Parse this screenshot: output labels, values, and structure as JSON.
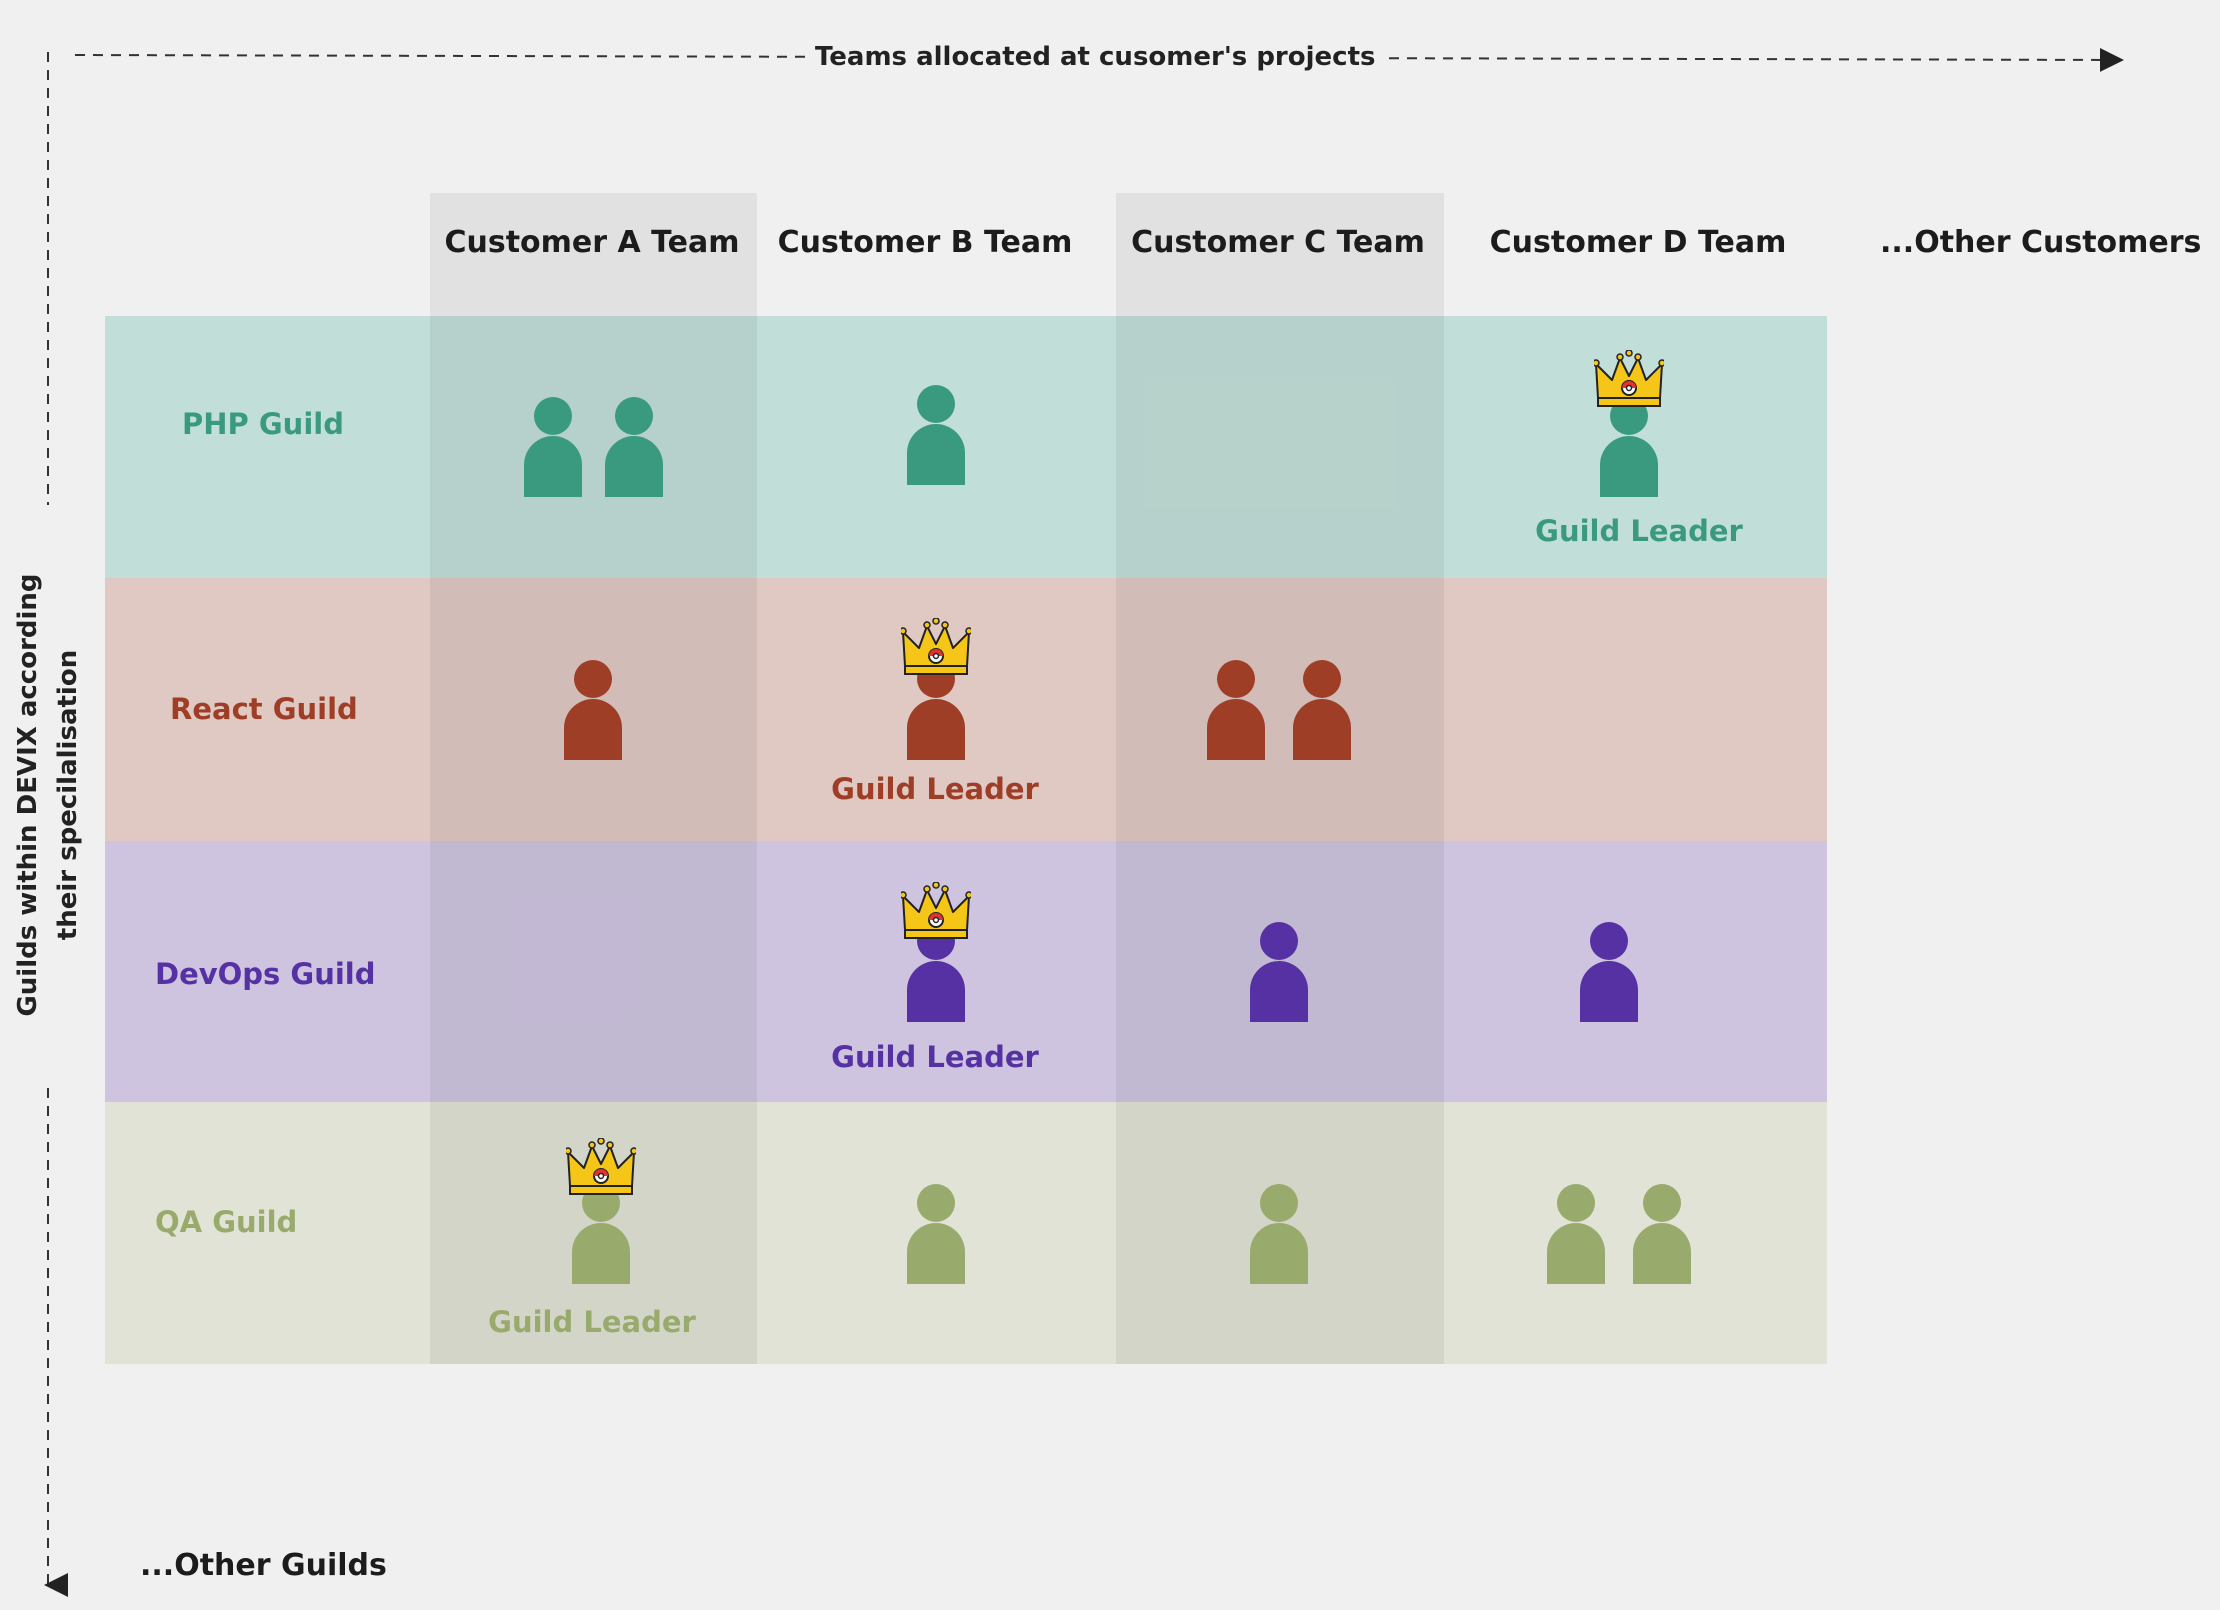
{
  "axes": {
    "horizontal_title": "Teams allocated at cusomer's projects",
    "vertical_title": "Guilds within DEVIX according their specilalisation"
  },
  "columns": [
    {
      "label": "Customer A Team"
    },
    {
      "label": "Customer B Team"
    },
    {
      "label": "Customer C Team"
    },
    {
      "label": "Customer D Team"
    }
  ],
  "other_customers": "...Other Customers",
  "other_guilds": "...Other Guilds",
  "leader_text": "Guild Leader",
  "guilds": [
    {
      "label": "PHP Guild",
      "color": "#3a9a80",
      "band_color": "#c2ded8"
    },
    {
      "label": "React Guild",
      "color": "#9e3e26",
      "band_color": "#e0c8c3"
    },
    {
      "label": "DevOps Guild",
      "color": "#5631a3",
      "band_color": "#cec4e0"
    },
    {
      "label": "QA Guild",
      "color": "#98aa6c",
      "band_color": "#e1e3d6"
    }
  ],
  "icons": {
    "member": "person-icon",
    "leader": "crown-icon"
  },
  "crown_color": "#f5c518"
}
